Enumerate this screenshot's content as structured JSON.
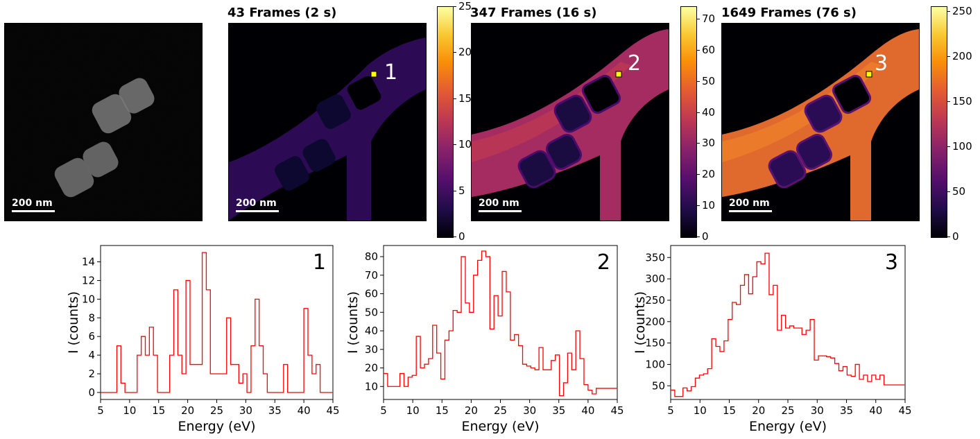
{
  "maps": [
    {
      "id": "haadf",
      "title": "",
      "scalebar": "200 nm",
      "marker_label": ""
    },
    {
      "id": "map1",
      "title": "43 Frames (2 s)",
      "scalebar": "200 nm",
      "marker_label": "1",
      "colorbar": {
        "min": 0,
        "max": 25,
        "ticks": [
          "0",
          "5",
          "10",
          "15",
          "20",
          "25"
        ]
      }
    },
    {
      "id": "map2",
      "title": "347 Frames (16 s)",
      "scalebar": "200 nm",
      "marker_label": "2",
      "colorbar": {
        "min": 0,
        "max": 74,
        "ticks": [
          "0",
          "10",
          "20",
          "30",
          "40",
          "50",
          "60",
          "70"
        ]
      }
    },
    {
      "id": "map3",
      "title": "1649 Frames (76 s)",
      "scalebar": "200 nm",
      "marker_label": "3",
      "colorbar": {
        "min": 0,
        "max": 255,
        "ticks": [
          "0",
          "50",
          "100",
          "150",
          "200",
          "250"
        ]
      }
    }
  ],
  "colors": {
    "spectrum_line": "#ff0000",
    "marker_fill": "#ffff00"
  },
  "chart_data": [
    {
      "type": "line",
      "step": true,
      "panel_label": "1",
      "xlabel": "Energy (eV)",
      "ylabel": "I (counts)",
      "xlim": [
        5,
        45
      ],
      "ylim": [
        -0.75,
        15.75
      ],
      "xticks": [
        5,
        10,
        15,
        20,
        25,
        30,
        35,
        40,
        45
      ],
      "yticks": [
        0,
        2,
        4,
        6,
        8,
        10,
        12,
        14
      ],
      "x": [
        5.0,
        5.7,
        6.4,
        7.1,
        7.8,
        8.5,
        9.2,
        9.9,
        10.6,
        11.3,
        12.0,
        12.7,
        13.4,
        14.1,
        14.8,
        15.5,
        16.2,
        16.9,
        17.6,
        18.3,
        19.0,
        19.7,
        20.4,
        21.1,
        21.8,
        22.5,
        23.2,
        23.9,
        24.6,
        25.3,
        26.0,
        26.7,
        27.4,
        28.1,
        28.8,
        29.5,
        30.2,
        30.9,
        31.6,
        32.3,
        33.0,
        33.7,
        34.4,
        35.1,
        35.8,
        36.5,
        37.2,
        37.9,
        38.6,
        39.3,
        40.0,
        40.7,
        41.4,
        42.1,
        42.8,
        43.5,
        44.2
      ],
      "y": [
        0,
        0,
        0,
        0,
        5,
        1,
        0,
        0,
        0,
        4,
        6,
        4,
        7,
        4,
        0,
        0,
        0,
        4,
        11,
        4,
        2,
        12,
        3,
        3,
        3,
        15,
        11,
        2,
        2,
        2,
        2,
        8,
        3,
        3,
        1,
        2,
        0,
        5,
        10,
        5,
        2,
        0,
        0,
        0,
        0,
        3,
        0,
        0,
        0,
        0,
        9,
        4,
        2,
        3,
        0,
        0,
        0
      ]
    },
    {
      "type": "line",
      "step": true,
      "panel_label": "2",
      "xlabel": "Energy (eV)",
      "ylabel": "I (counts)",
      "xlim": [
        5,
        45
      ],
      "ylim": [
        3,
        86
      ],
      "xticks": [
        5,
        10,
        15,
        20,
        25,
        30,
        35,
        40,
        45
      ],
      "yticks": [
        10,
        20,
        30,
        40,
        50,
        60,
        70,
        80
      ],
      "x": [
        5.0,
        5.7,
        6.4,
        7.1,
        7.8,
        8.5,
        9.2,
        9.9,
        10.6,
        11.3,
        12.0,
        12.7,
        13.4,
        14.1,
        14.8,
        15.5,
        16.2,
        16.9,
        17.6,
        18.3,
        19.0,
        19.7,
        20.4,
        21.1,
        21.8,
        22.5,
        23.2,
        23.9,
        24.6,
        25.3,
        26.0,
        26.7,
        27.4,
        28.1,
        28.8,
        29.5,
        30.2,
        30.9,
        31.6,
        32.3,
        33.0,
        33.7,
        34.4,
        35.1,
        35.8,
        36.5,
        37.2,
        37.9,
        38.6,
        39.3,
        40.0,
        40.7,
        41.4,
        42.1,
        42.8,
        43.5,
        44.2
      ],
      "y": [
        17,
        10,
        10,
        10,
        17,
        10,
        15,
        16,
        37,
        20,
        22,
        25,
        43,
        28,
        14,
        35,
        40,
        51,
        50,
        80,
        55,
        50,
        70,
        78,
        83,
        80,
        41,
        59,
        48,
        72,
        61,
        35,
        38,
        32,
        22,
        21,
        20,
        19,
        31,
        19,
        19,
        24,
        27,
        5,
        12,
        28,
        19,
        40,
        25,
        11,
        8,
        6,
        9,
        9,
        9,
        9,
        9
      ]
    },
    {
      "type": "line",
      "step": true,
      "panel_label": "3",
      "xlabel": "Energy (eV)",
      "ylabel": "I (counts)",
      "xlim": [
        5,
        45
      ],
      "ylim": [
        18,
        378
      ],
      "xticks": [
        5,
        10,
        15,
        20,
        25,
        30,
        35,
        40,
        45
      ],
      "yticks": [
        50,
        100,
        150,
        200,
        250,
        300,
        350
      ],
      "x": [
        5.0,
        5.7,
        6.4,
        7.1,
        7.8,
        8.5,
        9.2,
        9.9,
        10.6,
        11.3,
        12.0,
        12.7,
        13.4,
        14.1,
        14.8,
        15.5,
        16.2,
        16.9,
        17.6,
        18.3,
        19.0,
        19.7,
        20.4,
        21.1,
        21.8,
        22.5,
        23.2,
        23.9,
        24.6,
        25.3,
        26.0,
        26.7,
        27.4,
        28.1,
        28.8,
        29.5,
        30.2,
        30.9,
        31.6,
        32.3,
        33.0,
        33.7,
        34.4,
        35.1,
        35.8,
        36.5,
        37.2,
        37.9,
        38.6,
        39.3,
        40.0,
        40.7,
        41.4,
        42.1,
        42.8,
        43.5,
        44.2
      ],
      "y": [
        40,
        25,
        25,
        45,
        38,
        48,
        68,
        75,
        78,
        90,
        160,
        142,
        130,
        155,
        205,
        245,
        240,
        285,
        310,
        265,
        305,
        340,
        335,
        360,
        263,
        285,
        180,
        215,
        185,
        190,
        185,
        185,
        170,
        180,
        205,
        110,
        120,
        120,
        118,
        115,
        102,
        85,
        95,
        75,
        72,
        100,
        65,
        75,
        60,
        75,
        65,
        75,
        52,
        52,
        52,
        52,
        52
      ]
    }
  ]
}
